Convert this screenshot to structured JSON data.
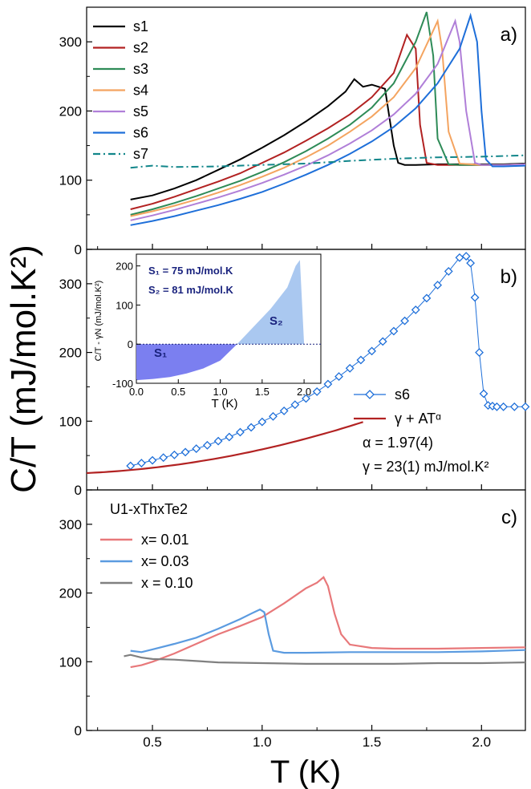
{
  "figure": {
    "ylabel": "C/T (mJ/mol.K²)",
    "xlabel": "T (K)"
  },
  "chart_data": [
    {
      "type": "line",
      "panel": "a)",
      "xlim": [
        0.2,
        2.2
      ],
      "ylim": [
        0,
        350
      ],
      "xticks": [
        0.5,
        1.0,
        1.5,
        2.0
      ],
      "yticks": [
        0,
        100,
        200,
        300
      ],
      "legend_position": "top-left",
      "series": [
        {
          "name": "s1",
          "color": "#000000",
          "x": [
            0.4,
            0.5,
            0.6,
            0.7,
            0.8,
            0.9,
            1.0,
            1.1,
            1.2,
            1.3,
            1.38,
            1.42,
            1.46,
            1.5,
            1.56,
            1.6,
            1.62,
            1.65,
            1.7,
            1.8,
            1.9,
            2.0,
            2.1,
            2.2
          ],
          "y": [
            72,
            78,
            88,
            100,
            115,
            130,
            147,
            165,
            185,
            207,
            228,
            246,
            235,
            238,
            232,
            150,
            125,
            122,
            122,
            123,
            123,
            123,
            123,
            124
          ]
        },
        {
          "name": "s2",
          "color": "#b22222",
          "x": [
            0.4,
            0.5,
            0.6,
            0.7,
            0.8,
            0.9,
            1.0,
            1.1,
            1.2,
            1.3,
            1.4,
            1.5,
            1.6,
            1.66,
            1.7,
            1.72,
            1.75,
            1.8,
            1.9,
            2.0,
            2.1,
            2.2
          ],
          "y": [
            58,
            66,
            76,
            87,
            98,
            110,
            125,
            140,
            157,
            175,
            195,
            220,
            255,
            310,
            290,
            180,
            125,
            122,
            122,
            122,
            122,
            123
          ]
        },
        {
          "name": "s3",
          "color": "#2e8b57",
          "x": [
            0.4,
            0.5,
            0.6,
            0.7,
            0.8,
            0.9,
            1.0,
            1.1,
            1.2,
            1.3,
            1.4,
            1.5,
            1.6,
            1.7,
            1.75,
            1.78,
            1.8,
            1.85,
            1.9,
            2.0,
            2.1,
            2.2
          ],
          "y": [
            50,
            58,
            67,
            77,
            88,
            99,
            112,
            126,
            142,
            160,
            180,
            205,
            240,
            300,
            343,
            280,
            160,
            123,
            122,
            122,
            122,
            123
          ]
        },
        {
          "name": "s4",
          "color": "#f4a460",
          "x": [
            0.4,
            0.5,
            0.6,
            0.7,
            0.8,
            0.9,
            1.0,
            1.1,
            1.2,
            1.3,
            1.4,
            1.5,
            1.6,
            1.7,
            1.8,
            1.82,
            1.85,
            1.9,
            2.0,
            2.1,
            2.2
          ],
          "y": [
            48,
            55,
            63,
            72,
            82,
            93,
            105,
            118,
            133,
            150,
            170,
            192,
            220,
            262,
            330,
            290,
            170,
            124,
            122,
            122,
            123
          ]
        },
        {
          "name": "s5",
          "color": "#b07fd8",
          "x": [
            0.4,
            0.5,
            0.6,
            0.7,
            0.8,
            0.9,
            1.0,
            1.1,
            1.2,
            1.3,
            1.4,
            1.5,
            1.6,
            1.7,
            1.8,
            1.88,
            1.9,
            1.93,
            1.97,
            2.0,
            2.1,
            2.2
          ],
          "y": [
            42,
            49,
            57,
            66,
            75,
            85,
            96,
            108,
            121,
            136,
            153,
            172,
            195,
            225,
            268,
            330,
            300,
            200,
            125,
            122,
            122,
            123
          ]
        },
        {
          "name": "s6",
          "color": "#1e6fd9",
          "x": [
            0.4,
            0.5,
            0.6,
            0.7,
            0.8,
            0.9,
            1.0,
            1.1,
            1.2,
            1.3,
            1.4,
            1.5,
            1.6,
            1.7,
            1.8,
            1.9,
            1.95,
            1.98,
            2.0,
            2.02,
            2.05,
            2.1,
            2.2
          ],
          "y": [
            35,
            41,
            48,
            56,
            64,
            73,
            83,
            95,
            108,
            122,
            138,
            156,
            177,
            204,
            240,
            290,
            338,
            300,
            200,
            130,
            120,
            120,
            121
          ]
        },
        {
          "name": "s7",
          "color": "#11868a",
          "dashed": true,
          "x": [
            0.4,
            0.5,
            0.6,
            0.8,
            1.0,
            1.2,
            1.4,
            1.6,
            1.8,
            2.0,
            2.2
          ],
          "y": [
            118,
            121,
            119,
            120,
            122,
            124,
            128,
            131,
            133,
            134,
            136
          ]
        }
      ]
    },
    {
      "type": "scatter",
      "panel": "b)",
      "xlim": [
        0.2,
        2.2
      ],
      "ylim": [
        0,
        350
      ],
      "xticks": [
        0.5,
        1.0,
        1.5,
        2.0
      ],
      "yticks": [
        0,
        100,
        200,
        300
      ],
      "legend_position": "bottom-right",
      "series": [
        {
          "name": "s6",
          "color": "#1e6fd9",
          "marker": "diamond",
          "x": [
            0.4,
            0.45,
            0.5,
            0.55,
            0.6,
            0.65,
            0.7,
            0.75,
            0.8,
            0.85,
            0.9,
            0.95,
            1.0,
            1.05,
            1.1,
            1.15,
            1.2,
            1.25,
            1.3,
            1.35,
            1.4,
            1.45,
            1.5,
            1.55,
            1.6,
            1.65,
            1.7,
            1.75,
            1.8,
            1.85,
            1.9,
            1.93,
            1.95,
            1.97,
            1.99,
            2.01,
            2.03,
            2.05,
            2.07,
            2.1,
            2.15,
            2.2
          ],
          "y": [
            35,
            39,
            43,
            47,
            51,
            55,
            60,
            65,
            71,
            77,
            84,
            91,
            99,
            107,
            115,
            124,
            133,
            143,
            154,
            165,
            177,
            189,
            202,
            216,
            231,
            246,
            262,
            279,
            298,
            318,
            338,
            340,
            330,
            280,
            200,
            140,
            123,
            122,
            121,
            121,
            121,
            121
          ]
        },
        {
          "name": "γ + ATᵅ",
          "color": "#b22222",
          "fit": {
            "gamma": 23,
            "A": 36,
            "alpha": 1.97
          }
        }
      ],
      "annotations": [
        "α = 1.97(4)",
        "γ = 23(1) mJ/mol.K²"
      ]
    },
    {
      "type": "area",
      "panel": "inset",
      "xlabel": "T (K)",
      "ylabel": "C/T - γN (mJ/mol.K²)",
      "xlim": [
        0,
        2.2
      ],
      "ylim": [
        -100,
        230
      ],
      "xticks": [
        0.0,
        0.5,
        1.0,
        1.5,
        2.0
      ],
      "yticks": [
        -100,
        0,
        100,
        200
      ],
      "x": [
        0,
        0.2,
        0.4,
        0.6,
        0.8,
        1.0,
        1.2,
        1.4,
        1.6,
        1.8,
        1.9,
        1.95,
        2.0
      ],
      "y": [
        -92,
        -89,
        -84,
        -75,
        -62,
        -42,
        0,
        45,
        90,
        145,
        200,
        215,
        0
      ],
      "regions": [
        {
          "label": "S₁",
          "sign": "negative",
          "color": "#7b7ff0"
        },
        {
          "label": "S₂",
          "sign": "positive",
          "color": "#aac8f0"
        }
      ],
      "annotations": [
        "S₁ = 75 mJ/mol.K",
        "S₂ = 81 mJ/mol.K"
      ]
    },
    {
      "type": "line",
      "panel": "c)",
      "title": "U1-xThxTe2",
      "xlim": [
        0.2,
        2.2
      ],
      "ylim": [
        0,
        350
      ],
      "xticks": [
        0.5,
        1.0,
        1.5,
        2.0
      ],
      "yticks": [
        0,
        100,
        200,
        300
      ],
      "legend_position": "top-left",
      "series": [
        {
          "name": "x=  0.01",
          "color": "#e8787a",
          "x": [
            0.4,
            0.45,
            0.5,
            0.6,
            0.7,
            0.8,
            0.9,
            1.0,
            1.1,
            1.2,
            1.25,
            1.28,
            1.3,
            1.33,
            1.36,
            1.4,
            1.5,
            1.6,
            1.8,
            2.0,
            2.2
          ],
          "y": [
            92,
            95,
            100,
            112,
            126,
            140,
            152,
            165,
            185,
            207,
            215,
            223,
            210,
            170,
            140,
            125,
            120,
            119,
            119,
            120,
            121
          ]
        },
        {
          "name": "x=  0.03",
          "color": "#5b9be0",
          "x": [
            0.4,
            0.45,
            0.5,
            0.6,
            0.7,
            0.8,
            0.9,
            0.95,
            0.99,
            1.01,
            1.03,
            1.05,
            1.1,
            1.2,
            1.4,
            1.6,
            1.8,
            2.0,
            2.2
          ],
          "y": [
            116,
            114,
            118,
            126,
            135,
            148,
            162,
            170,
            176,
            172,
            140,
            116,
            113,
            113,
            114,
            114,
            114,
            115,
            117
          ]
        },
        {
          "name": "x = 0.10",
          "color": "#808080",
          "x": [
            0.37,
            0.4,
            0.45,
            0.5,
            0.6,
            0.7,
            0.8,
            1.0,
            1.2,
            1.4,
            1.6,
            1.8,
            2.0,
            2.2
          ],
          "y": [
            108,
            110,
            106,
            104,
            103,
            101,
            99,
            98,
            97,
            97,
            97,
            98,
            98,
            99
          ]
        }
      ]
    }
  ]
}
